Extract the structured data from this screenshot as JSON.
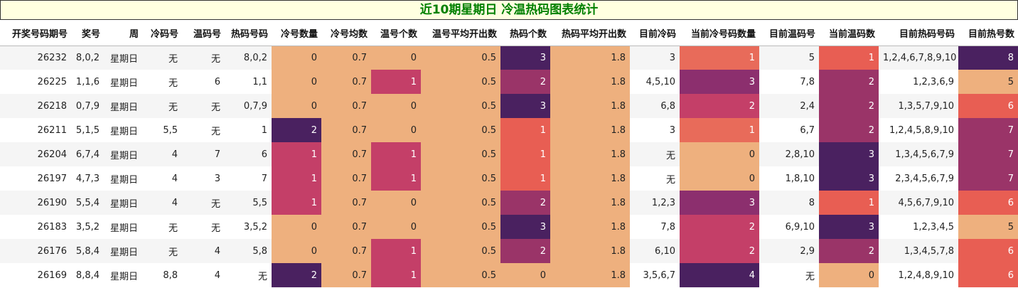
{
  "title": "近10期星期日 冷温热码图表统计",
  "colors": {
    "title_bg": "#ffffe0",
    "title_text": "#008000",
    "heat_low": "#eeb07e",
    "heat_1": "#e85e53",
    "heat_2": "#9a3468",
    "heat_3": "#4a2160"
  },
  "columns": [
    "开奖号码期号",
    "奖号",
    "周",
    "冷码号",
    "温码号",
    "热码号码",
    "冷号数量",
    "冷号均数",
    "温号个数",
    "温号平均开出数",
    "热码个数",
    "热码平均开出数",
    "目前冷码",
    "当前冷号码数量",
    "目前温码号",
    "当前温码数",
    "目前热码号码",
    "目前热号数"
  ],
  "rows": [
    [
      "26232",
      "8,0,2",
      "星期日",
      "无",
      "无",
      "8,0,2",
      "0",
      "0.7",
      "0",
      "0.5",
      "3",
      "1.8",
      "3",
      "1",
      "5",
      "1",
      "1,2,4,6,7,8,9,10",
      "8"
    ],
    [
      "26225",
      "1,1,6",
      "星期日",
      "无",
      "6",
      "1,1",
      "0",
      "0.7",
      "1",
      "0.5",
      "2",
      "1.8",
      "4,5,10",
      "3",
      "7,8",
      "2",
      "1,2,3,6,9",
      "5"
    ],
    [
      "26218",
      "0,7,9",
      "星期日",
      "无",
      "无",
      "0,7,9",
      "0",
      "0.7",
      "0",
      "0.5",
      "3",
      "1.8",
      "6,8",
      "2",
      "2,4",
      "2",
      "1,3,5,7,9,10",
      "6"
    ],
    [
      "26211",
      "5,1,5",
      "星期日",
      "5,5",
      "无",
      "1",
      "2",
      "0.7",
      "0",
      "0.5",
      "1",
      "1.8",
      "3",
      "1",
      "6,7",
      "2",
      "1,2,4,5,8,9,10",
      "7"
    ],
    [
      "26204",
      "6,7,4",
      "星期日",
      "4",
      "7",
      "6",
      "1",
      "0.7",
      "1",
      "0.5",
      "1",
      "1.8",
      "无",
      "0",
      "2,8,10",
      "3",
      "1,3,4,5,6,7,9",
      "7"
    ],
    [
      "26197",
      "4,7,3",
      "星期日",
      "4",
      "3",
      "7",
      "1",
      "0.7",
      "1",
      "0.5",
      "1",
      "1.8",
      "无",
      "0",
      "1,8,10",
      "3",
      "2,3,4,5,6,7,9",
      "7"
    ],
    [
      "26190",
      "5,5,4",
      "星期日",
      "4",
      "无",
      "5,5",
      "1",
      "0.7",
      "0",
      "0.5",
      "2",
      "1.8",
      "1,2,3",
      "3",
      "8",
      "1",
      "4,5,6,7,9,10",
      "6"
    ],
    [
      "26183",
      "3,5,2",
      "星期日",
      "无",
      "无",
      "3,5,2",
      "0",
      "0.7",
      "0",
      "0.5",
      "3",
      "1.8",
      "7,8",
      "2",
      "6,9,10",
      "3",
      "1,2,3,4,5",
      "5"
    ],
    [
      "26176",
      "5,8,4",
      "星期日",
      "无",
      "4",
      "5,8",
      "0",
      "0.7",
      "1",
      "0.5",
      "2",
      "1.8",
      "6,10",
      "2",
      "2,9",
      "2",
      "1,3,4,5,7,8",
      "6"
    ],
    [
      "26169",
      "8,8,4",
      "星期日",
      "8,8",
      "4",
      "无",
      "2",
      "0.7",
      "1",
      "0.5",
      "0",
      "1.8",
      "3,5,6,7",
      "4",
      "无",
      "0",
      "1,2,4,8,9,10",
      "6"
    ]
  ]
}
